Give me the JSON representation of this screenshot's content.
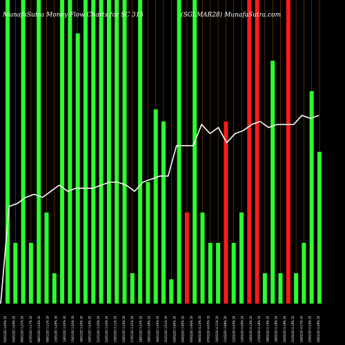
{
  "chart_data": {
    "type": "bar",
    "title_left": "MunafaSutra  Money Flow  Charts for SC 315",
    "title_right": "(SGLMAR28) MunafaSutra.com",
    "colors": {
      "background": "#000000",
      "up": "#2cff2c",
      "down": "#ff1a1a",
      "line": "#ffffff",
      "grid": "#8b4a00"
    },
    "ylim": [
      0,
      100
    ],
    "categories": [
      "02/01/20 3.00% 20",
      "03/01/20 3.04% 20",
      "06/01/20 3.21% 20",
      "07/01/20 3.17% 20",
      "08/01/20 3.24% 20",
      "09/01/20 3.11% 20",
      "13/01/20 3.26% 20",
      "14/01/20 3.20% 20",
      "15/01/20 3.20% 20",
      "16/01/20 3.20% 20",
      "20/01/20 3.24% 20",
      "21/01/20 3.20% 20",
      "22/01/20 3.20% 20",
      "23/01/20 3.11% 20",
      "24/01/20 3.25% 20",
      "27/01/20 3.31% 20",
      "28/01/20 3.32% 20",
      "29/01/20 3.38% 20",
      "30/01/20 3.45% 20",
      "31/01/20 3.51% 20",
      "03/02/20 3.90% 20",
      "04/02/20 3.90% 20",
      "05/02/20 3.90% 20",
      "06/02/20 4.14% 20",
      "07/02/20 4.03% 20",
      "10/02/20 4.11% 20",
      "11/02/20 3.98% 20",
      "12/02/20 4.05% 20",
      "13/02/20 4.09% 20",
      "14/02/20 4.14% 20",
      "17/02/20 4.18% 20",
      "18/02/20 4.14% 20",
      "19/02/20 4.18% 20",
      "20/02/20 4.18% 20",
      "21/02/20 4.18% 20",
      "24/02/20 4.27% 20",
      "25/02/20 4.24% 20",
      "26/02/20 4.28% 20"
    ],
    "bars": [
      {
        "value": 100,
        "dir": "up"
      },
      {
        "value": 20,
        "dir": "up"
      },
      {
        "value": 100,
        "dir": "up"
      },
      {
        "value": 20,
        "dir": "up"
      },
      {
        "value": 100,
        "dir": "up"
      },
      {
        "value": 30,
        "dir": "up"
      },
      {
        "value": 10,
        "dir": "up"
      },
      {
        "value": 100,
        "dir": "up"
      },
      {
        "value": 100,
        "dir": "up"
      },
      {
        "value": 89,
        "dir": "up"
      },
      {
        "value": 100,
        "dir": "up"
      },
      {
        "value": 100,
        "dir": "up"
      },
      {
        "value": 100,
        "dir": "up"
      },
      {
        "value": 100,
        "dir": "up"
      },
      {
        "value": 100,
        "dir": "up"
      },
      {
        "value": 100,
        "dir": "up"
      },
      {
        "value": 10,
        "dir": "up"
      },
      {
        "value": 100,
        "dir": "up"
      },
      {
        "value": 40,
        "dir": "up"
      },
      {
        "value": 64,
        "dir": "up"
      },
      {
        "value": 60,
        "dir": "up"
      },
      {
        "value": 8,
        "dir": "up"
      },
      {
        "value": 100,
        "dir": "up"
      },
      {
        "value": 30,
        "dir": "down"
      },
      {
        "value": 100,
        "dir": "up"
      },
      {
        "value": 30,
        "dir": "up"
      },
      {
        "value": 20,
        "dir": "up"
      },
      {
        "value": 20,
        "dir": "up"
      },
      {
        "value": 60,
        "dir": "down"
      },
      {
        "value": 20,
        "dir": "up"
      },
      {
        "value": 30,
        "dir": "up"
      },
      {
        "value": 100,
        "dir": "down"
      },
      {
        "value": 100,
        "dir": "down"
      },
      {
        "value": 10,
        "dir": "up"
      },
      {
        "value": 80,
        "dir": "up"
      },
      {
        "value": 10,
        "dir": "up"
      },
      {
        "value": 100,
        "dir": "down"
      },
      {
        "value": 10,
        "dir": "up"
      },
      {
        "value": 20,
        "dir": "up"
      },
      {
        "value": 70,
        "dir": "up"
      },
      {
        "value": 50,
        "dir": "up"
      }
    ],
    "line": [
      0,
      32,
      33,
      35,
      36,
      35,
      37,
      39,
      37,
      38,
      38,
      38,
      39,
      40,
      40,
      39,
      37,
      40,
      41,
      42,
      42,
      52,
      52,
      52,
      59,
      56,
      58,
      53,
      56,
      57,
      59,
      60,
      58,
      59,
      59,
      59,
      62,
      61,
      62
    ]
  }
}
